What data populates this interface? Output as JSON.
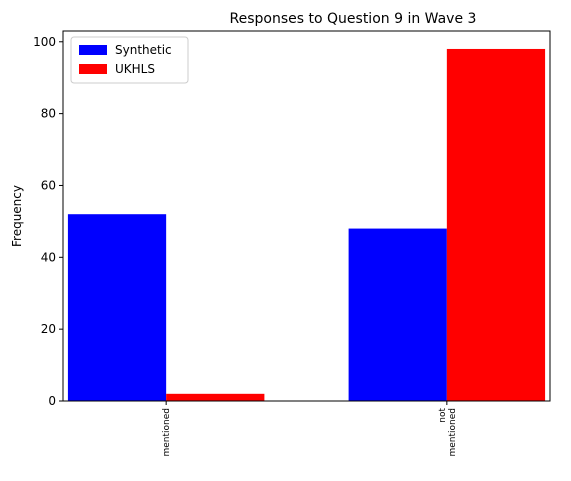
{
  "chart_data": {
    "type": "bar",
    "title": "Responses to Question 9 in Wave 3",
    "xlabel": "",
    "ylabel": "Frequency",
    "categories": [
      [
        "mentioned"
      ],
      [
        "not",
        "mentioned"
      ]
    ],
    "series": [
      {
        "name": "Synthetic",
        "color": "#0000ff",
        "values": [
          52,
          48
        ]
      },
      {
        "name": "UKHLS",
        "color": "#ff0000",
        "values": [
          2,
          98
        ]
      }
    ],
    "ylim": [
      0,
      103
    ],
    "yticks": [
      0,
      20,
      40,
      60,
      80,
      100
    ],
    "legend_position": "top-left",
    "grid": false
  }
}
